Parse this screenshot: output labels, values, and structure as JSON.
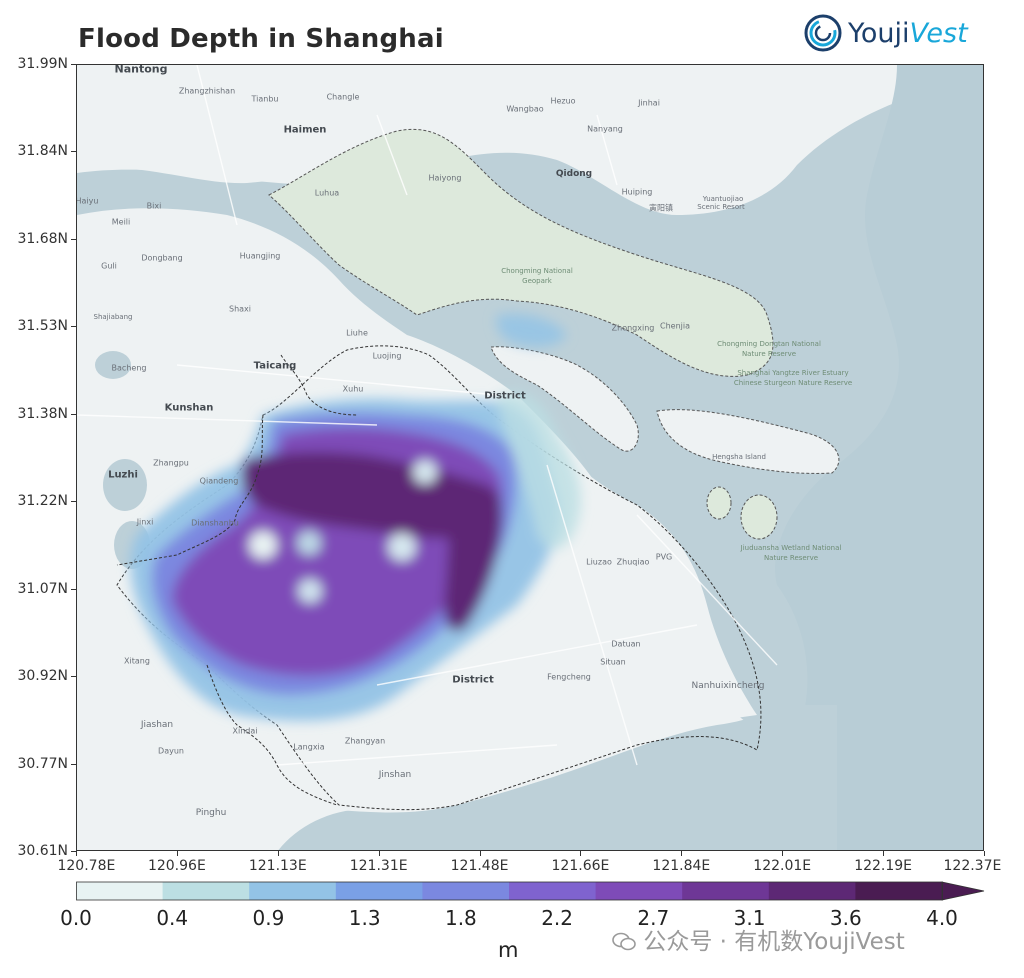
{
  "title": "Flood Depth in Shanghai",
  "logo": {
    "text_a": "Youji",
    "text_b": "Vest",
    "icon": "swirl-logo-icon"
  },
  "axes": {
    "y_ticks": [
      "31.99N",
      "31.84N",
      "31.68N",
      "31.53N",
      "31.38N",
      "31.22N",
      "31.07N",
      "30.92N",
      "30.77N",
      "30.61N"
    ],
    "x_ticks": [
      "120.78E",
      "120.96E",
      "121.13E",
      "121.31E",
      "121.48E",
      "121.66E",
      "121.84E",
      "122.01E",
      "122.19E",
      "122.37E"
    ]
  },
  "colorbar": {
    "labels": [
      "0.0",
      "0.4",
      "0.9",
      "1.3",
      "1.8",
      "2.2",
      "2.7",
      "3.1",
      "3.6",
      "4.0"
    ],
    "colors": [
      "#e8f3f3",
      "#bcdfe3",
      "#93c3e6",
      "#7aa0e6",
      "#7b88e0",
      "#7f63cf",
      "#7e4bb8",
      "#6e3796",
      "#5d2875",
      "#4a1c52"
    ],
    "unit": "m",
    "extend": "max"
  },
  "watermark": "公众号 · 有机数YoujiVest",
  "map_colors": {
    "water": "#bdd0d8",
    "land": "#eef2f3",
    "island": "#dde9dc"
  },
  "places": [
    {
      "id": "nantong",
      "text": "Nantong",
      "big": true
    },
    {
      "id": "zhangzhishan",
      "text": "Zhangzhishan"
    },
    {
      "id": "tianbu",
      "text": "Tianbu"
    },
    {
      "id": "changle",
      "text": "Changle"
    },
    {
      "id": "wangbao",
      "text": "Wangbao"
    },
    {
      "id": "hezuo",
      "text": "Hezuo"
    },
    {
      "id": "jinhai",
      "text": "Jinhai"
    },
    {
      "id": "haimen",
      "text": "Haimen",
      "big": true
    },
    {
      "id": "nanyang",
      "text": "Nanyang"
    },
    {
      "id": "qidong",
      "text": "Qidong",
      "big": true
    },
    {
      "id": "huiping",
      "text": "Huiping"
    },
    {
      "id": "yuantuojiao",
      "text": "Yuantuojiao"
    },
    {
      "id": "scenic",
      "text": "Scenic Resort"
    },
    {
      "id": "shishi",
      "text": "寅阳镇"
    },
    {
      "id": "haiyu",
      "text": "Haiyu"
    },
    {
      "id": "bixi",
      "text": "Bixi"
    },
    {
      "id": "meili",
      "text": "Meili"
    },
    {
      "id": "guli",
      "text": "Guli"
    },
    {
      "id": "dongbang",
      "text": "Dongbang"
    },
    {
      "id": "huangjing",
      "text": "Huangjing"
    },
    {
      "id": "shajiabang",
      "text": "Shajiabang"
    },
    {
      "id": "shaxi",
      "text": "Shaxi"
    },
    {
      "id": "baicheng",
      "text": "Bacheng"
    },
    {
      "id": "taicang",
      "text": "Taicang",
      "big": true
    },
    {
      "id": "liuhe",
      "text": "Liuhe"
    },
    {
      "id": "luojing",
      "text": "Luojing"
    },
    {
      "id": "xuhu",
      "text": "Xuhu"
    },
    {
      "id": "kunshan",
      "text": "Kunshan",
      "big": true
    },
    {
      "id": "luzhi",
      "text": "Luzhi"
    },
    {
      "id": "zhangpu",
      "text": "Zhangpu"
    },
    {
      "id": "qiandeng",
      "text": "Qiandeng"
    },
    {
      "id": "jinxi",
      "text": "Jinxi"
    },
    {
      "id": "dianshanhu",
      "text": "Dianshanhu"
    },
    {
      "id": "liuzao",
      "text": "Liuzao"
    },
    {
      "id": "zhuqiao",
      "text": "Zhuqiao"
    },
    {
      "id": "pvg",
      "text": "PVG"
    },
    {
      "id": "datuan",
      "text": "Datuan"
    },
    {
      "id": "situan",
      "text": "Situan"
    },
    {
      "id": "fengcheng",
      "text": "Fengcheng"
    },
    {
      "id": "nanhui",
      "text": "Nanhuixincheng"
    },
    {
      "id": "xitang",
      "text": "Xitang"
    },
    {
      "id": "jiashan",
      "text": "Jiashan"
    },
    {
      "id": "dayun",
      "text": "Dayun"
    },
    {
      "id": "xindai",
      "text": "Xindai"
    },
    {
      "id": "langxia",
      "text": "Langxia"
    },
    {
      "id": "zhangyan",
      "text": "Zhangyan"
    },
    {
      "id": "jinshan",
      "text": "Jinshan"
    },
    {
      "id": "pinghu",
      "text": "Pinghu"
    },
    {
      "id": "chongming",
      "text": "Chongming National Geopark"
    },
    {
      "id": "zhongxing",
      "text": "Zhongxing"
    },
    {
      "id": "chenjia",
      "text": "Chenjia"
    },
    {
      "id": "luhua",
      "text": "Luhua"
    },
    {
      "id": "haiyong",
      "text": "Haiyong"
    },
    {
      "id": "dongtan",
      "text": "Chongming Dongtan National Nature Reserve"
    },
    {
      "id": "sturgeon",
      "text": "Shanghai Yangtze River Estuary Chinese Sturgeon Nature Reserve"
    },
    {
      "id": "hengsha",
      "text": "Hengsha Island"
    },
    {
      "id": "jiuduansha",
      "text": "Jiuduansha Wetland National Nature Reserve"
    },
    {
      "id": "district1",
      "text": "District",
      "big": true
    },
    {
      "id": "district2",
      "text": "District",
      "big": true
    }
  ]
}
